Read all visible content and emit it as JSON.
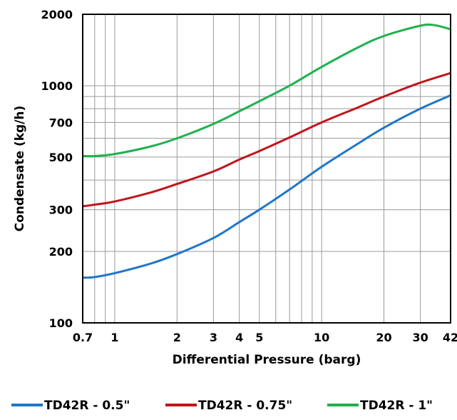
{
  "chart_data": {
    "type": "line",
    "xscale": "log",
    "yscale": "log",
    "xlim": [
      0.7,
      42
    ],
    "ylim": [
      100,
      2000
    ],
    "xlabel": "Differential Pressure (barg)",
    "ylabel": "Condensate (kg/h)",
    "grid": true,
    "legend_position": "bottom",
    "x_ticks": [
      {
        "value": 0.7,
        "label": "0.7"
      },
      {
        "value": 1,
        "label": "1"
      },
      {
        "value": 2,
        "label": "2"
      },
      {
        "value": 3,
        "label": "3"
      },
      {
        "value": 4,
        "label": "4"
      },
      {
        "value": 5,
        "label": "5"
      },
      {
        "value": 10,
        "label": "10"
      },
      {
        "value": 20,
        "label": "20"
      },
      {
        "value": 30,
        "label": "30"
      },
      {
        "value": 42,
        "label": "42"
      }
    ],
    "y_ticks": [
      {
        "value": 100,
        "label": "100"
      },
      {
        "value": 200,
        "label": "200"
      },
      {
        "value": 300,
        "label": "300"
      },
      {
        "value": 500,
        "label": "500"
      },
      {
        "value": 700,
        "label": "700"
      },
      {
        "value": 1000,
        "label": "1000"
      },
      {
        "value": 2000,
        "label": "2000"
      }
    ],
    "x_grid": [
      0.7,
      0.8,
      0.9,
      1,
      2,
      3,
      4,
      5,
      6,
      7,
      8,
      9,
      10,
      20,
      30,
      42
    ],
    "y_grid": [
      100,
      200,
      300,
      400,
      500,
      600,
      700,
      800,
      900,
      1000,
      2000
    ],
    "series": [
      {
        "name": "TD42R - 0.5\"",
        "color": "#1f77c9",
        "points": [
          [
            0.7,
            155
          ],
          [
            0.8,
            156
          ],
          [
            1,
            162
          ],
          [
            1.5,
            178
          ],
          [
            2,
            195
          ],
          [
            3,
            228
          ],
          [
            4,
            266
          ],
          [
            5,
            300
          ],
          [
            7,
            365
          ],
          [
            10,
            455
          ],
          [
            15,
            570
          ],
          [
            20,
            665
          ],
          [
            30,
            800
          ],
          [
            42,
            910
          ]
        ]
      },
      {
        "name": "TD42R - 0.75\"",
        "color": "#c0161c",
        "points": [
          [
            0.7,
            310
          ],
          [
            0.8,
            315
          ],
          [
            1,
            325
          ],
          [
            1.5,
            355
          ],
          [
            2,
            385
          ],
          [
            3,
            435
          ],
          [
            4,
            488
          ],
          [
            5,
            530
          ],
          [
            7,
            605
          ],
          [
            10,
            700
          ],
          [
            15,
            810
          ],
          [
            20,
            900
          ],
          [
            30,
            1030
          ],
          [
            42,
            1130
          ]
        ]
      },
      {
        "name": "TD42R - 1\"",
        "color": "#1fb14d",
        "points": [
          [
            0.7,
            505
          ],
          [
            0.8,
            505
          ],
          [
            1,
            515
          ],
          [
            1.5,
            555
          ],
          [
            2,
            600
          ],
          [
            3,
            690
          ],
          [
            4,
            780
          ],
          [
            5,
            860
          ],
          [
            7,
            1000
          ],
          [
            10,
            1200
          ],
          [
            15,
            1450
          ],
          [
            20,
            1620
          ],
          [
            30,
            1790
          ],
          [
            35,
            1800
          ],
          [
            42,
            1730
          ]
        ]
      }
    ]
  }
}
